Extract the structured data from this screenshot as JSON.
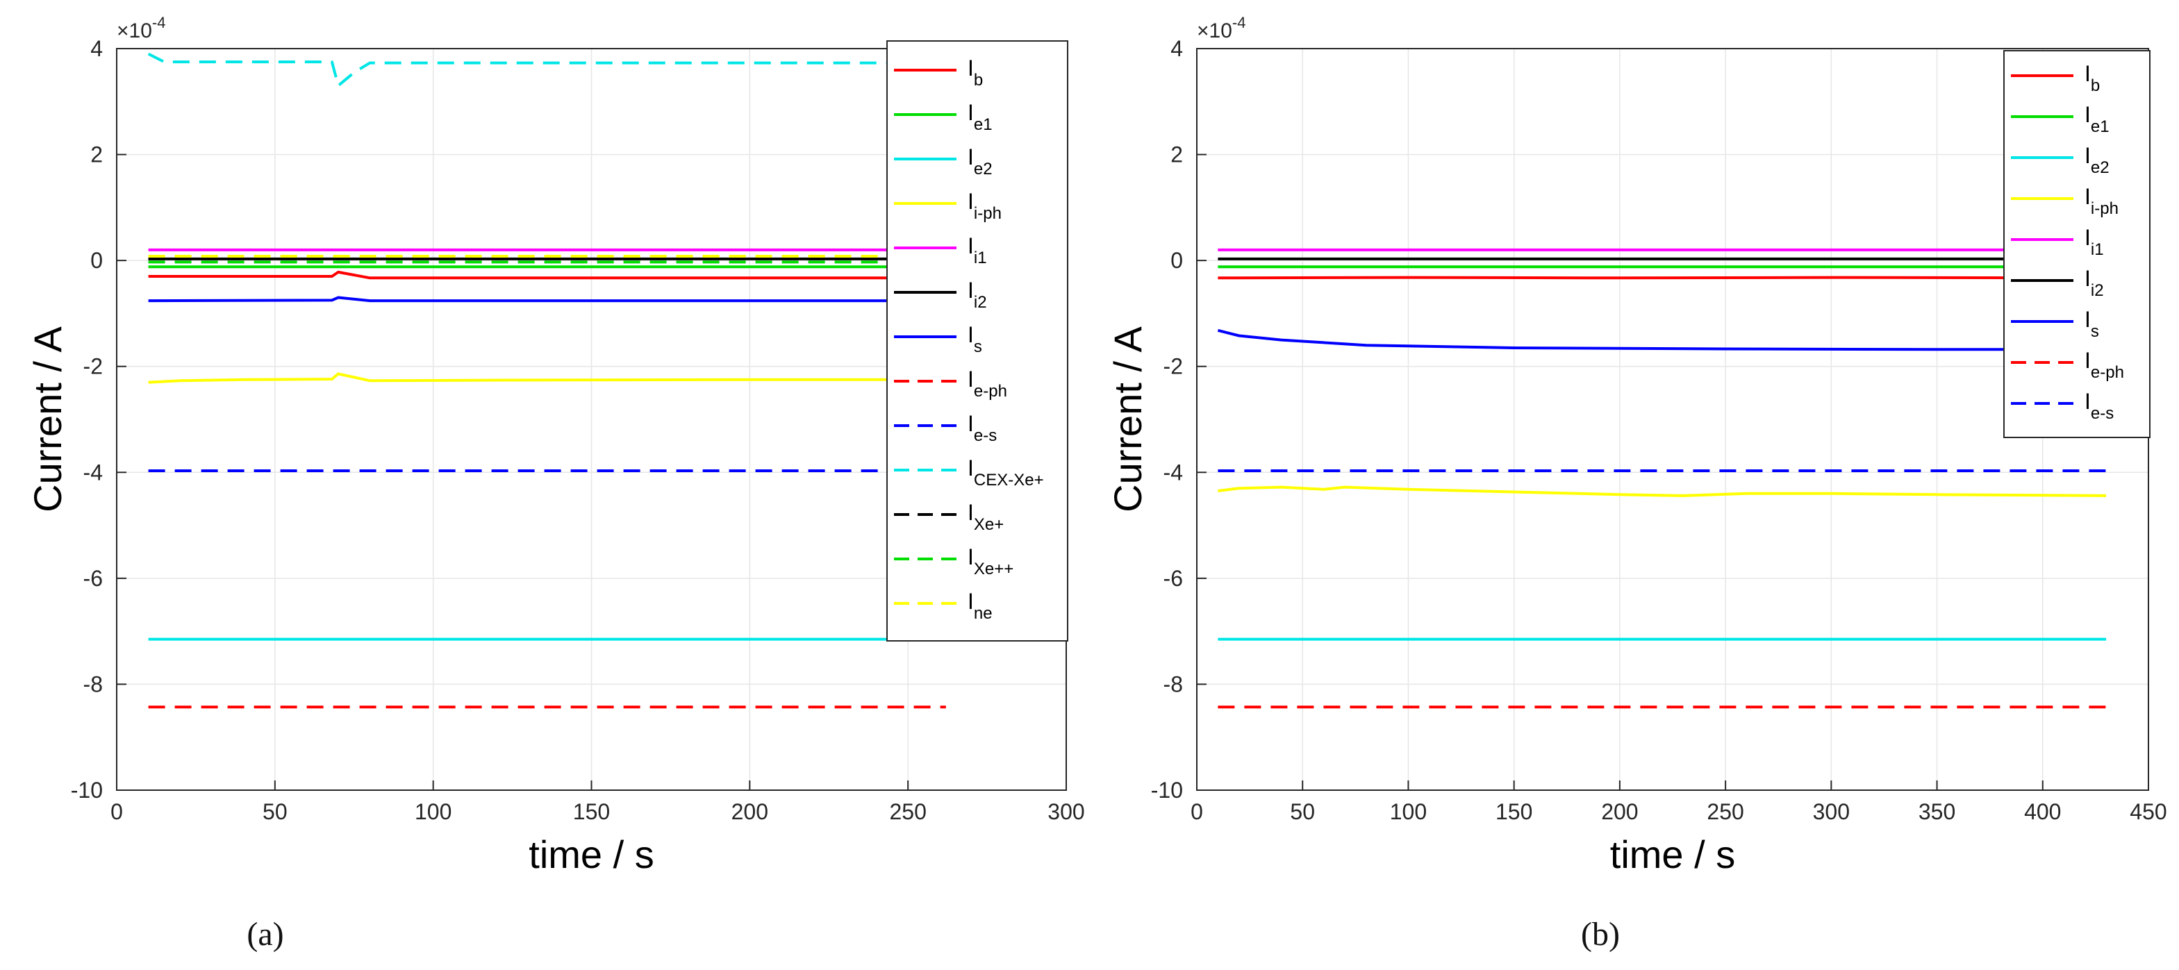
{
  "figure": {
    "caption_a": "(a)",
    "caption_b": "(b)"
  },
  "chart_data": [
    {
      "type": "line",
      "panel": "a",
      "caption": "(a)",
      "title": "",
      "xlabel": "time / s",
      "ylabel": "Current / A",
      "y_exponent": "×10^-4",
      "y_exponent_base": "×10",
      "y_exponent_power": "-4",
      "xlim": [
        0,
        300
      ],
      "ylim": [
        -10,
        4
      ],
      "xticks": [
        0,
        50,
        100,
        150,
        200,
        250,
        300
      ],
      "yticks": [
        -10,
        -8,
        -6,
        -4,
        -2,
        0,
        2,
        4
      ],
      "grid": true,
      "legend_position": "top-right",
      "series": [
        {
          "label": "I",
          "sub": "b",
          "color": "#ff0000",
          "dash": "solid",
          "x": [
            10,
            68,
            70,
            80,
            120,
            200,
            265
          ],
          "y": [
            -0.3,
            -0.3,
            -0.22,
            -0.33,
            -0.33,
            -0.33,
            -0.33
          ]
        },
        {
          "label": "I",
          "sub": "e1",
          "color": "#00dd00",
          "dash": "solid",
          "x": [
            10,
            265
          ],
          "y": [
            -0.12,
            -0.12
          ]
        },
        {
          "label": "I",
          "sub": "e2",
          "color": "#00e5e5",
          "dash": "solid",
          "x": [
            10,
            265
          ],
          "y": [
            -7.15,
            -7.15
          ]
        },
        {
          "label": "I",
          "sub": "i-ph",
          "color": "#ffff00",
          "dash": "solid",
          "x": [
            10,
            20,
            40,
            68,
            70,
            80,
            120,
            200,
            265
          ],
          "y": [
            -2.3,
            -2.27,
            -2.25,
            -2.24,
            -2.14,
            -2.27,
            -2.26,
            -2.25,
            -2.25
          ]
        },
        {
          "label": "I",
          "sub": "i1",
          "color": "#ff00ff",
          "dash": "solid",
          "x": [
            10,
            265
          ],
          "y": [
            0.2,
            0.2
          ]
        },
        {
          "label": "I",
          "sub": "i2",
          "color": "#000000",
          "dash": "solid",
          "x": [
            10,
            265
          ],
          "y": [
            0.03,
            0.03
          ]
        },
        {
          "label": "I",
          "sub": "s",
          "color": "#0000ff",
          "dash": "solid",
          "x": [
            10,
            68,
            70,
            80,
            120,
            200,
            265
          ],
          "y": [
            -0.76,
            -0.75,
            -0.7,
            -0.76,
            -0.76,
            -0.76,
            -0.76
          ]
        },
        {
          "label": "I",
          "sub": "e-ph",
          "color": "#ff0000",
          "dash": "dashed",
          "x": [
            10,
            262
          ],
          "y": [
            -8.43,
            -8.43
          ]
        },
        {
          "label": "I",
          "sub": "e-s",
          "color": "#0000ff",
          "dash": "dashed",
          "x": [
            10,
            265
          ],
          "y": [
            -3.97,
            -3.97
          ]
        },
        {
          "label": "I",
          "sub": "CEX-Xe+",
          "color": "#00e5e5",
          "dash": "dashed",
          "x": [
            10,
            15,
            68,
            70,
            75,
            80,
            200,
            265
          ],
          "y": [
            3.9,
            3.75,
            3.75,
            3.3,
            3.55,
            3.73,
            3.73,
            3.73
          ]
        },
        {
          "label": "I",
          "sub": "Xe+",
          "color": "#000000",
          "dash": "dashed",
          "x": [
            10,
            265
          ],
          "y": [
            0.03,
            0.03
          ]
        },
        {
          "label": "I",
          "sub": "Xe++",
          "color": "#00dd00",
          "dash": "dashed",
          "x": [
            10,
            265
          ],
          "y": [
            -0.03,
            -0.03
          ]
        },
        {
          "label": "I",
          "sub": "ne",
          "color": "#ffff00",
          "dash": "dashed",
          "x": [
            10,
            265
          ],
          "y": [
            0.08,
            0.08
          ]
        }
      ]
    },
    {
      "type": "line",
      "panel": "b",
      "caption": "(b)",
      "title": "",
      "xlabel": "time / s",
      "ylabel": "Current / A",
      "y_exponent": "×10^-4",
      "y_exponent_base": "×10",
      "y_exponent_power": "-4",
      "xlim": [
        0,
        450
      ],
      "ylim": [
        -10,
        4
      ],
      "xticks": [
        0,
        50,
        100,
        150,
        200,
        250,
        300,
        350,
        400,
        450
      ],
      "yticks": [
        -10,
        -8,
        -6,
        -4,
        -2,
        0,
        2,
        4
      ],
      "grid": true,
      "legend_position": "top-right",
      "series": [
        {
          "label": "I",
          "sub": "b",
          "color": "#ff0000",
          "dash": "solid",
          "x": [
            10,
            100,
            200,
            300,
            430
          ],
          "y": [
            -0.33,
            -0.32,
            -0.33,
            -0.32,
            -0.33
          ]
        },
        {
          "label": "I",
          "sub": "e1",
          "color": "#00dd00",
          "dash": "solid",
          "x": [
            10,
            430
          ],
          "y": [
            -0.12,
            -0.12
          ]
        },
        {
          "label": "I",
          "sub": "e2",
          "color": "#00e5e5",
          "dash": "solid",
          "x": [
            10,
            430
          ],
          "y": [
            -7.15,
            -7.15
          ]
        },
        {
          "label": "I",
          "sub": "i-ph",
          "color": "#ffff00",
          "dash": "solid",
          "x": [
            10,
            20,
            40,
            60,
            70,
            100,
            150,
            200,
            230,
            260,
            300,
            350,
            430
          ],
          "y": [
            -4.35,
            -4.3,
            -4.28,
            -4.32,
            -4.28,
            -4.32,
            -4.37,
            -4.42,
            -4.44,
            -4.4,
            -4.4,
            -4.42,
            -4.44
          ]
        },
        {
          "label": "I",
          "sub": "i1",
          "color": "#ff00ff",
          "dash": "solid",
          "x": [
            10,
            430
          ],
          "y": [
            0.2,
            0.2
          ]
        },
        {
          "label": "I",
          "sub": "i2",
          "color": "#000000",
          "dash": "solid",
          "x": [
            10,
            430
          ],
          "y": [
            0.03,
            0.03
          ]
        },
        {
          "label": "I",
          "sub": "s",
          "color": "#0000ff",
          "dash": "solid",
          "x": [
            10,
            20,
            40,
            80,
            150,
            250,
            350,
            430
          ],
          "y": [
            -1.32,
            -1.42,
            -1.5,
            -1.6,
            -1.65,
            -1.67,
            -1.68,
            -1.68
          ]
        },
        {
          "label": "I",
          "sub": "e-ph",
          "color": "#ff0000",
          "dash": "dashed",
          "x": [
            10,
            430
          ],
          "y": [
            -8.43,
            -8.43
          ]
        },
        {
          "label": "I",
          "sub": "e-s",
          "color": "#0000ff",
          "dash": "dashed",
          "x": [
            10,
            430
          ],
          "y": [
            -3.97,
            -3.97
          ]
        }
      ]
    }
  ]
}
